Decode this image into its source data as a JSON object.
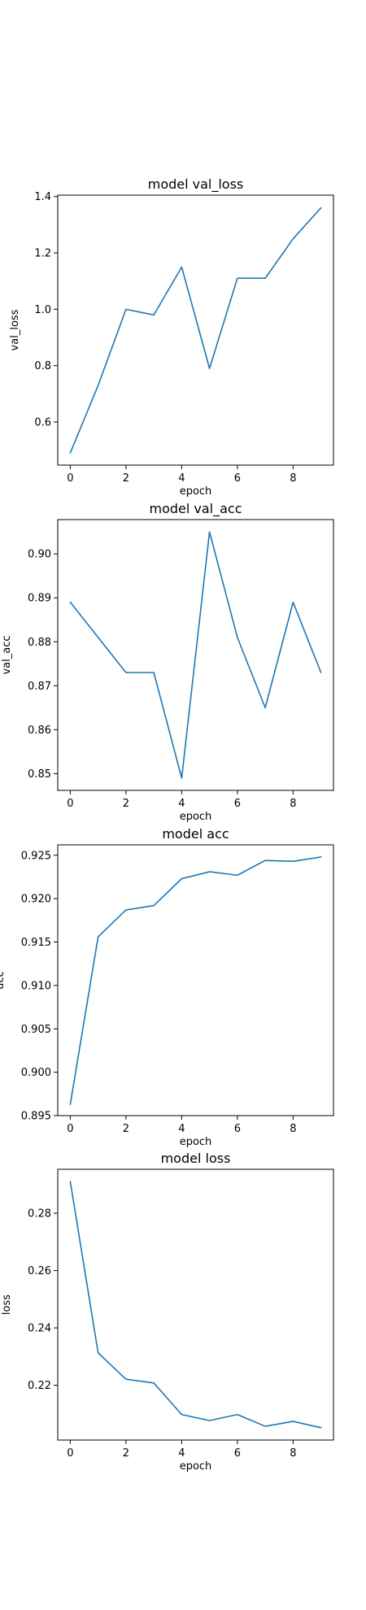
{
  "chart_data": [
    {
      "type": "line",
      "title": "model val_loss",
      "xlabel": "epoch",
      "ylabel": "val_loss",
      "x": [
        0,
        1,
        2,
        3,
        4,
        5,
        6,
        7,
        8,
        9
      ],
      "series": [
        {
          "values": [
            0.49,
            0.73,
            1.0,
            0.98,
            1.15,
            0.79,
            1.11,
            1.11,
            1.25,
            1.36
          ]
        }
      ],
      "xlim": [
        -0.45,
        9.45
      ],
      "ylim": [
        0.447,
        1.405
      ],
      "xticks": [
        0,
        2,
        4,
        6,
        8
      ],
      "yticks": [
        0.6,
        0.8,
        1.0,
        1.2,
        1.4
      ],
      "ytick_labels": [
        "0.6",
        "0.8",
        "1.0",
        "1.2",
        "1.4"
      ],
      "grid": false,
      "color": "#1f77b4"
    },
    {
      "type": "line",
      "title": "model val_acc",
      "xlabel": "epoch",
      "ylabel": "val_acc",
      "x": [
        0,
        1,
        2,
        3,
        4,
        5,
        6,
        7,
        8,
        9
      ],
      "series": [
        {
          "values": [
            0.889,
            0.881,
            0.873,
            0.873,
            0.849,
            0.905,
            0.881,
            0.865,
            0.889,
            0.873
          ]
        }
      ],
      "xlim": [
        -0.45,
        9.45
      ],
      "ylim": [
        0.8462,
        0.9078
      ],
      "xticks": [
        0,
        2,
        4,
        6,
        8
      ],
      "yticks": [
        0.85,
        0.86,
        0.87,
        0.88,
        0.89,
        0.9
      ],
      "ytick_labels": [
        "0.85",
        "0.86",
        "0.87",
        "0.88",
        "0.89",
        "0.90"
      ],
      "grid": false,
      "color": "#1f77b4"
    },
    {
      "type": "line",
      "title": "model acc",
      "xlabel": "epoch",
      "ylabel": "acc",
      "x": [
        0,
        1,
        2,
        3,
        4,
        5,
        6,
        7,
        8,
        9
      ],
      "series": [
        {
          "values": [
            0.8963,
            0.9156,
            0.9187,
            0.9192,
            0.9223,
            0.9231,
            0.9227,
            0.9244,
            0.9243,
            0.9248
          ]
        }
      ],
      "xlim": [
        -0.45,
        9.45
      ],
      "ylim": [
        0.895,
        0.9262
      ],
      "xticks": [
        0,
        2,
        4,
        6,
        8
      ],
      "yticks": [
        0.895,
        0.9,
        0.905,
        0.91,
        0.915,
        0.92,
        0.925
      ],
      "ytick_labels": [
        "0.895",
        "0.900",
        "0.905",
        "0.910",
        "0.915",
        "0.920",
        "0.925"
      ],
      "grid": false,
      "color": "#1f77b4"
    },
    {
      "type": "line",
      "title": "model loss",
      "xlabel": "epoch",
      "ylabel": "loss",
      "x": [
        0,
        1,
        2,
        3,
        4,
        5,
        6,
        7,
        8,
        9
      ],
      "series": [
        {
          "values": [
            0.291,
            0.2313,
            0.2221,
            0.2208,
            0.2098,
            0.2077,
            0.2098,
            0.2057,
            0.2074,
            0.2052
          ]
        }
      ],
      "xlim": [
        -0.45,
        9.45
      ],
      "ylim": [
        0.2009,
        0.2953
      ],
      "xticks": [
        0,
        2,
        4,
        6,
        8
      ],
      "yticks": [
        0.22,
        0.24,
        0.26,
        0.28
      ],
      "ytick_labels": [
        "0.22",
        "0.24",
        "0.26",
        "0.28"
      ],
      "grid": false,
      "color": "#1f77b4"
    }
  ]
}
